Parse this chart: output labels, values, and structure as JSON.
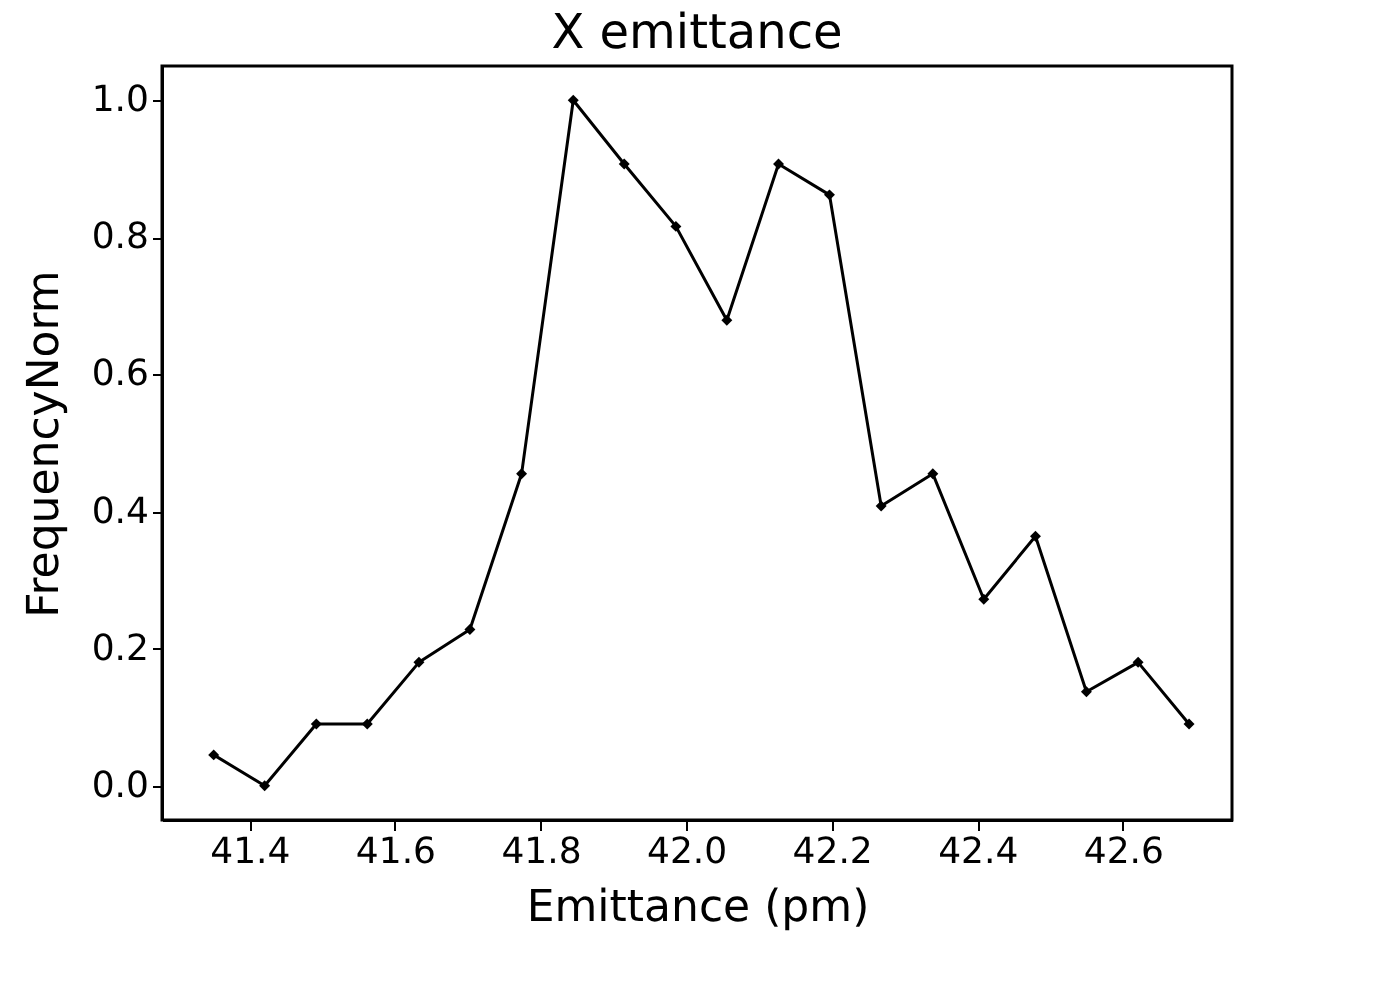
{
  "chart_data": {
    "type": "line",
    "title": "X emittance",
    "xlabel": "Emittance (pm)",
    "ylabel": "FrequencyNorm",
    "x": [
      41.351,
      41.421,
      41.492,
      41.562,
      41.633,
      41.703,
      41.774,
      41.845,
      41.915,
      41.986,
      42.056,
      42.127,
      42.197,
      42.268,
      42.339,
      42.409,
      42.48,
      42.55,
      42.621,
      42.691
    ],
    "series": [
      {
        "color": "#000000",
        "values": [
          0.045,
          0.0,
          0.09,
          0.09,
          0.18,
          0.228,
          0.455,
          1.0,
          0.907,
          0.816,
          0.679,
          0.907,
          0.862,
          0.408,
          0.455,
          0.272,
          0.364,
          0.137,
          0.18,
          0.09
        ]
      }
    ],
    "xlim": [
      41.28,
      42.75
    ],
    "xticks": [
      {
        "value": 41.4,
        "label": "41.4"
      },
      {
        "value": 41.6,
        "label": "41.6"
      },
      {
        "value": 41.8,
        "label": "41.8"
      },
      {
        "value": 42.0,
        "label": "42.0"
      },
      {
        "value": 42.2,
        "label": "42.2"
      },
      {
        "value": 42.4,
        "label": "42.4"
      },
      {
        "value": 42.6,
        "label": "42.6"
      }
    ],
    "ylim": [
      -0.05,
      1.05
    ],
    "yticks": [
      {
        "value": 0,
        "label": "0.0"
      },
      {
        "value": 0.2,
        "label": "0.2"
      },
      {
        "value": 0.4,
        "label": "0.4"
      },
      {
        "value": 0.6,
        "label": "0.6"
      },
      {
        "value": 0.8,
        "label": "0.8"
      },
      {
        "value": 1.0,
        "label": "1.0"
      }
    ],
    "grid": false,
    "marker": "diamond",
    "line_style": "solid"
  }
}
